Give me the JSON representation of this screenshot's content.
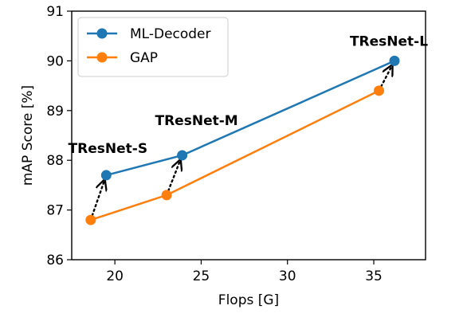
{
  "chart_data": {
    "type": "line",
    "title": "",
    "xlabel": "Flops [G]",
    "ylabel": "mAP Score [%]",
    "xlim": [
      17.5,
      38.0
    ],
    "ylim": [
      86,
      91
    ],
    "xticks": [
      20,
      25,
      30,
      35
    ],
    "yticks": [
      86,
      87,
      88,
      89,
      90,
      91
    ],
    "xtick_labels": [
      "20",
      "25",
      "30",
      "35"
    ],
    "ytick_labels": [
      "86",
      "87",
      "88",
      "89",
      "90",
      "91"
    ],
    "grid": false,
    "legend_position": "top-left",
    "series": [
      {
        "name": "ML-Decoder",
        "color": "#1f77b4",
        "x": [
          19.5,
          23.9,
          36.2
        ],
        "y": [
          87.7,
          88.1,
          90.0
        ]
      },
      {
        "name": "GAP",
        "color": "#ff7f0e",
        "x": [
          18.6,
          23.0,
          35.3
        ],
        "y": [
          86.8,
          87.3,
          89.4
        ]
      }
    ],
    "annotations": [
      {
        "text": "TResNet-S",
        "x": 19.5,
        "y": 87.7
      },
      {
        "text": "TResNet-M",
        "x": 23.9,
        "y": 88.1
      },
      {
        "text": "TResNet-L",
        "x": 36.2,
        "y": 90.0
      }
    ],
    "arrows": [
      {
        "from": [
          18.6,
          86.8
        ],
        "to": [
          19.5,
          87.7
        ]
      },
      {
        "from": [
          23.0,
          87.3
        ],
        "to": [
          23.9,
          88.1
        ]
      },
      {
        "from": [
          35.3,
          89.4
        ],
        "to": [
          36.2,
          90.0
        ]
      }
    ]
  }
}
